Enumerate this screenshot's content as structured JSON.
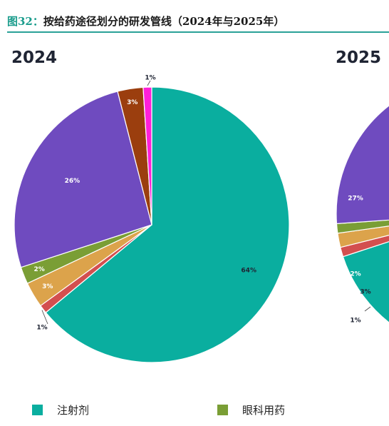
{
  "figure": {
    "number": "图32：",
    "title": "按给药途径划分的研发管线（2024年与2025年）"
  },
  "chart_data": [
    {
      "type": "pie",
      "title": "2024",
      "slices": [
        {
          "value": 64,
          "label": "64%",
          "color": "#0aae9f",
          "category": "注射剂"
        },
        {
          "value": 1,
          "label": "1%",
          "color": "#d34f4f"
        },
        {
          "value": 3,
          "label": "3%",
          "color": "#dca34b"
        },
        {
          "value": 2,
          "label": "2%",
          "color": "#7a9e35",
          "category": "眼科用药"
        },
        {
          "value": 26,
          "label": "26%",
          "color": "#6f4bbf"
        },
        {
          "value": 3,
          "label": "3%",
          "color": "#9b3e0e"
        },
        {
          "value": 1,
          "label": "1%",
          "color": "#ff1fd8"
        }
      ]
    },
    {
      "type": "pie",
      "title": "2025",
      "partial": true,
      "visible_labels": [
        "27%",
        "2%",
        "3%",
        "1%"
      ]
    }
  ],
  "legend": [
    {
      "label": "注射剂",
      "color": "#0aae9f"
    },
    {
      "label": "眼科用药",
      "color": "#7a9e35"
    }
  ]
}
